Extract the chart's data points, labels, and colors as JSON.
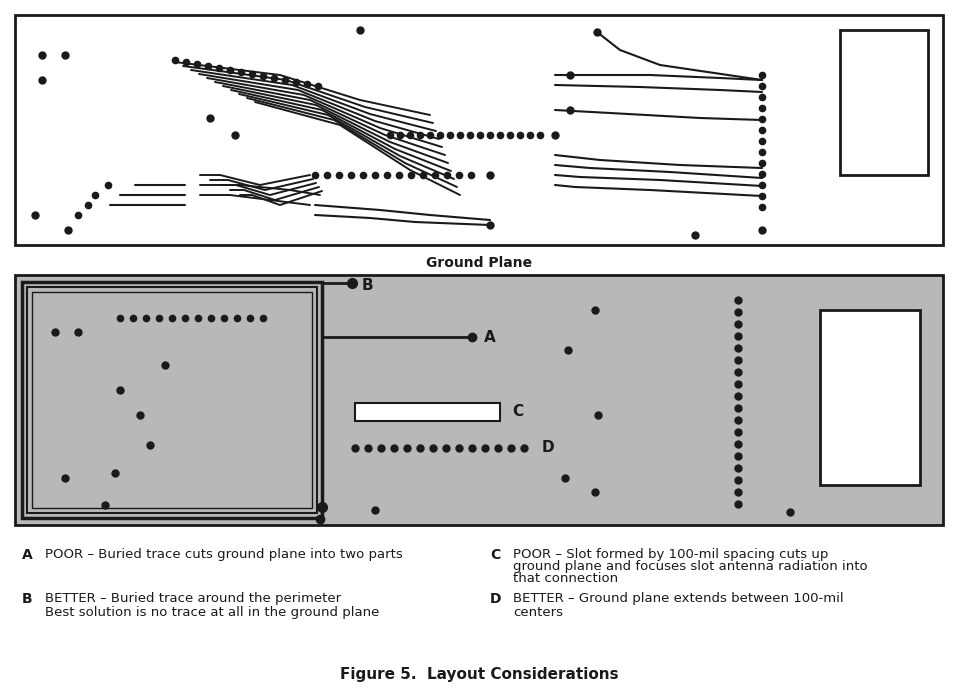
{
  "bg_color": "#ffffff",
  "gray_color": "#b8b8b8",
  "dark_color": "#1a1a1a",
  "title_top": "Ground Plane",
  "figure_title": "Figure 5.  Layout Considerations",
  "label_A": "A",
  "label_B": "B",
  "label_C": "C",
  "label_D": "D",
  "text_A": "POOR – Buried trace cuts ground plane into two parts",
  "text_B1": "BETTER – Buried trace around the perimeter",
  "text_B2": "Best solution is no trace at all in the ground plane",
  "text_C1": "POOR – Slot formed by 100-mil spacing cuts up",
  "text_C2": "ground plane and focuses slot antenna radiation into",
  "text_C3": "that connection",
  "text_D1": "BETTER – Ground plane extends between 100-mil",
  "text_D2": "centers"
}
